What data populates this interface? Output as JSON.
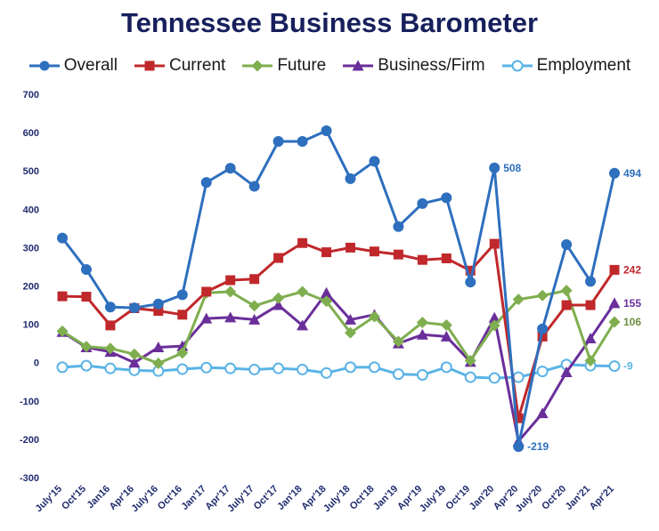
{
  "chart_data": {
    "type": "line",
    "title": "Tennessee Business Barometer",
    "categories": [
      "July'15",
      "Oct'15",
      "Jan16",
      "Apr'16",
      "July'16",
      "Oct'16",
      "Jan'17",
      "Apr'17",
      "July'17",
      "Oct'17",
      "Jan'18",
      "Apr'18",
      "July'18",
      "Oct'18",
      "Jan'19",
      "Apr'19",
      "July'19",
      "Oct'19",
      "Jan'20",
      "Apr'20",
      "July'20",
      "Oct'20",
      "Jan'21",
      "Apr'21"
    ],
    "ylim": [
      -300,
      700
    ],
    "yticks": [
      "700",
      "600",
      "500",
      "400",
      "300",
      "200",
      "100",
      "0",
      "-100",
      "-200",
      "-300"
    ],
    "grid": false,
    "legend_position": "top",
    "series": [
      {
        "name": "Overall",
        "color": "#2e6fbe",
        "marker": "circle",
        "values": [
          325,
          243,
          145,
          143,
          153,
          177,
          470,
          507,
          460,
          577,
          577,
          605,
          480,
          525,
          355,
          415,
          430,
          210,
          508,
          -219,
          88,
          308,
          212,
          494
        ]
      },
      {
        "name": "Current",
        "color": "#c0282b",
        "marker": "square",
        "values": [
          173,
          172,
          97,
          142,
          135,
          125,
          185,
          215,
          218,
          273,
          312,
          288,
          300,
          290,
          282,
          268,
          272,
          240,
          310,
          -145,
          68,
          150,
          150,
          242
        ]
      },
      {
        "name": "Future",
        "color": "#7fae4f",
        "marker": "diamond",
        "values": [
          82,
          42,
          37,
          22,
          -2,
          25,
          182,
          185,
          148,
          168,
          185,
          160,
          78,
          120,
          55,
          105,
          98,
          5,
          97,
          165,
          175,
          188,
          5,
          106
        ]
      },
      {
        "name": "Business/Firm",
        "color": "#6a2f9a",
        "marker": "triangle",
        "values": [
          80,
          40,
          28,
          0,
          40,
          43,
          115,
          118,
          112,
          150,
          97,
          182,
          112,
          125,
          50,
          73,
          68,
          2,
          117,
          -205,
          -132,
          -25,
          63,
          155
        ]
      },
      {
        "name": "Employment",
        "color": "#5ab3e6",
        "marker": "open-circle",
        "values": [
          -12,
          -8,
          -15,
          -20,
          -22,
          -17,
          -13,
          -15,
          -18,
          -15,
          -18,
          -27,
          -12,
          -12,
          -30,
          -32,
          -12,
          -38,
          -40,
          -38,
          -23,
          -5,
          -8,
          -9
        ]
      }
    ],
    "annotations": [
      {
        "series": "Overall",
        "category": "Jan'20",
        "text": "508"
      },
      {
        "series": "Overall",
        "category": "Apr'21",
        "text": "494"
      },
      {
        "series": "Overall",
        "category": "Apr'20",
        "text": "-219"
      },
      {
        "series": "Current",
        "category": "Apr'21",
        "text": "242"
      },
      {
        "series": "Business/Firm",
        "category": "Apr'21",
        "text": "155"
      },
      {
        "series": "Future",
        "category": "Apr'21",
        "text": "106"
      },
      {
        "series": "Employment",
        "category": "Apr'21",
        "text": "-9"
      }
    ]
  }
}
